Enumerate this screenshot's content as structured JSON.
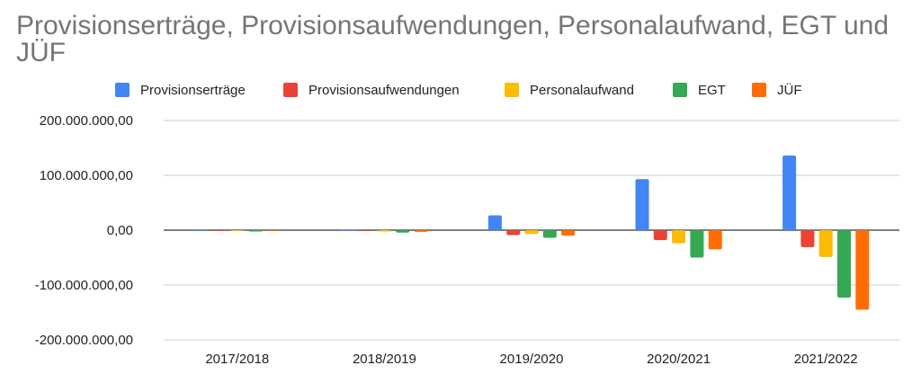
{
  "chart_data": {
    "type": "bar",
    "title": "Provisionserträge, Provisionsaufwendungen, Personalaufwand, EGT und JÜF",
    "categories": [
      "2017/2018",
      "2018/2019",
      "2019/2020",
      "2020/2021",
      "2021/2022"
    ],
    "series": [
      {
        "name": "Provisionserträge",
        "color": "#4285F4",
        "values": [
          200000,
          1500000,
          27000000,
          93000000,
          136000000
        ]
      },
      {
        "name": "Provisionsaufwendungen",
        "color": "#EA4335",
        "values": [
          -300000,
          -1500000,
          -9000000,
          -18000000,
          -31000000
        ]
      },
      {
        "name": "Personalaufwand",
        "color": "#FBBC04",
        "values": [
          -500000,
          -2500000,
          -7000000,
          -24000000,
          -49000000
        ]
      },
      {
        "name": "EGT",
        "color": "#34A853",
        "values": [
          -2500000,
          -4500000,
          -14000000,
          -50000000,
          -123000000
        ]
      },
      {
        "name": "JÜF",
        "color": "#FF6D01",
        "values": [
          -400000,
          -3000000,
          -10000000,
          -35000000,
          -145000000
        ]
      }
    ],
    "ylim": [
      -200000000,
      200000000
    ],
    "yticks": [
      "200.000.000,00",
      "100.000.000,00",
      "0,00",
      "-100.000.000,00",
      "-200.000.000,00"
    ],
    "ytick_values": [
      200000000,
      100000000,
      0,
      -100000000,
      -200000000
    ],
    "xlabel": "",
    "ylabel": "",
    "grid": true,
    "legend_position": "top"
  }
}
